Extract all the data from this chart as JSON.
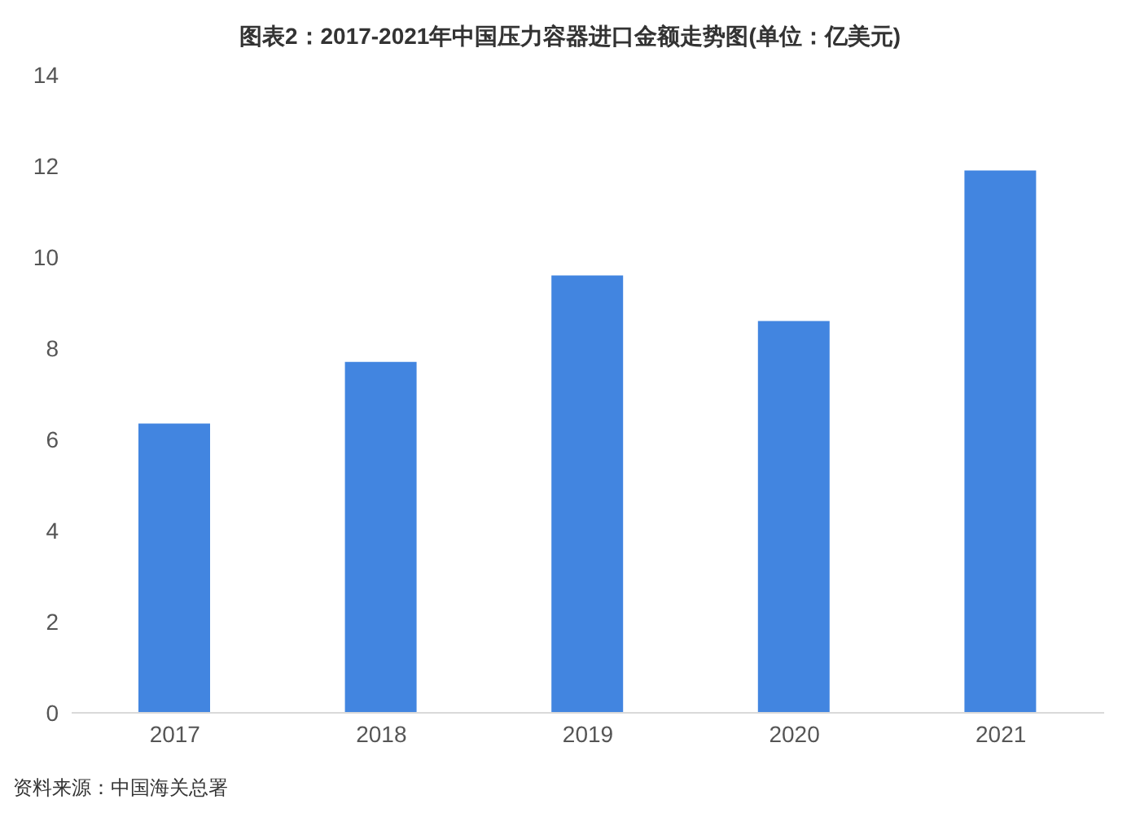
{
  "chart_data": {
    "type": "bar",
    "title": "图表2：2017-2021年中国压力容器进口金额走势图(单位：亿美元)",
    "categories": [
      "2017",
      "2018",
      "2019",
      "2020",
      "2021"
    ],
    "values": [
      6.35,
      7.7,
      9.6,
      8.6,
      11.9
    ],
    "color": "#4285e0",
    "ylim": [
      0,
      14
    ],
    "yticks": [
      0,
      2,
      4,
      6,
      8,
      10,
      12,
      14
    ],
    "grid": false,
    "annotations": [
      "资料来源：中国海关总署"
    ]
  }
}
